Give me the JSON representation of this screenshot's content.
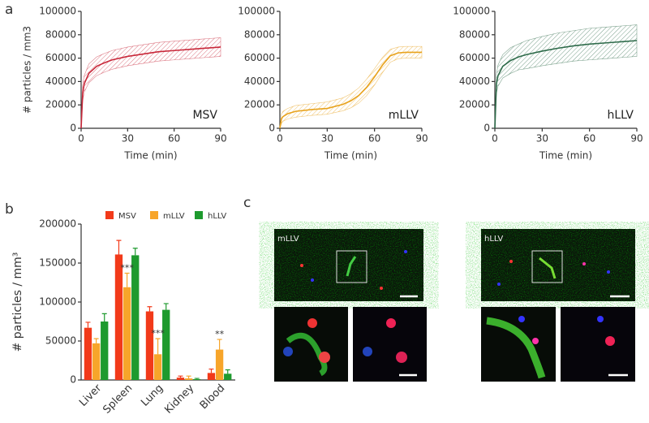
{
  "panel_labels": [
    "a",
    "b",
    "c"
  ],
  "chart_data": [
    {
      "type": "line",
      "x_label": "Time (min)",
      "y_label": "# particles / mm3",
      "x": [
        0,
        1,
        2,
        5,
        10,
        15,
        20,
        30,
        40,
        50,
        60,
        70,
        80,
        90
      ],
      "series": [
        {
          "name": "MSV",
          "color": "#c8283a",
          "values": [
            0,
            30000,
            38000,
            47000,
            53000,
            56000,
            58500,
            61500,
            63500,
            65500,
            66500,
            67500,
            68500,
            69500
          ],
          "upper": [
            0,
            37000,
            45000,
            55000,
            61000,
            64000,
            66500,
            69500,
            71500,
            73500,
            74500,
            75500,
            76500,
            77500
          ],
          "lower": [
            0,
            23000,
            31000,
            39000,
            45000,
            48000,
            50500,
            53500,
            55500,
            57500,
            58500,
            59500,
            60500,
            61500
          ]
        }
      ],
      "xlim": [
        0,
        90
      ],
      "xticks": [
        0,
        30,
        60,
        90
      ],
      "ylim": [
        0,
        100000
      ],
      "yticks": [
        0,
        20000,
        40000,
        60000,
        80000,
        100000
      ]
    },
    {
      "type": "line",
      "x_label": "Time (min)",
      "x": [
        0,
        1,
        2,
        5,
        10,
        20,
        30,
        40,
        45,
        50,
        55,
        60,
        65,
        70,
        75,
        80,
        90
      ],
      "series": [
        {
          "name": "mLLV",
          "color": "#e8a21c",
          "values": [
            0,
            8000,
            10000,
            12500,
            14500,
            16000,
            17000,
            20500,
            23500,
            28000,
            35000,
            44000,
            54000,
            62000,
            64500,
            65000,
            65000
          ],
          "upper": [
            0,
            12000,
            14500,
            17000,
            19500,
            21000,
            22500,
            26000,
            29500,
            34500,
            42000,
            51000,
            60500,
            67500,
            69500,
            70000,
            70000
          ],
          "lower": [
            0,
            4000,
            6000,
            8000,
            9500,
            11000,
            12000,
            15000,
            17500,
            21500,
            28000,
            37000,
            47500,
            56500,
            59500,
            60000,
            60000
          ]
        }
      ],
      "xlim": [
        0,
        90
      ],
      "xticks": [
        0,
        30,
        60,
        90
      ],
      "ylim": [
        0,
        100000
      ],
      "yticks": [
        0,
        20000,
        40000,
        60000,
        80000,
        100000
      ]
    },
    {
      "type": "line",
      "x_label": "Time (min)",
      "x": [
        0,
        1,
        2,
        5,
        10,
        15,
        20,
        30,
        40,
        50,
        60,
        70,
        80,
        90
      ],
      "series": [
        {
          "name": "hLLV",
          "color": "#2e6b4a",
          "values": [
            0,
            38000,
            45000,
            53000,
            58000,
            61000,
            63000,
            66000,
            68500,
            70500,
            72000,
            73000,
            74000,
            75000
          ],
          "upper": [
            0,
            46000,
            54000,
            63000,
            69000,
            72000,
            75000,
            78500,
            81500,
            83500,
            85500,
            86500,
            87500,
            88500
          ],
          "lower": [
            0,
            30000,
            36000,
            43000,
            47000,
            50000,
            51000,
            53500,
            55500,
            57500,
            58500,
            59500,
            60500,
            61500
          ]
        }
      ],
      "xlim": [
        0,
        90
      ],
      "xticks": [
        0,
        30,
        60,
        90
      ],
      "ylim": [
        0,
        100000
      ],
      "yticks": [
        0,
        20000,
        40000,
        60000,
        80000,
        100000
      ]
    },
    {
      "type": "bar",
      "y_label": "# particles / mm³",
      "categories": [
        "Liver",
        "Spleen",
        "Lung",
        "Kidney",
        "Blood"
      ],
      "series": [
        {
          "name": "MSV",
          "color": "#f23a1a",
          "values": [
            67000,
            161000,
            88000,
            3000,
            9000
          ],
          "errors": [
            7000,
            18000,
            6000,
            2000,
            5000
          ]
        },
        {
          "name": "mLLV",
          "color": "#f7a52a",
          "values": [
            47000,
            119000,
            33000,
            2000,
            39000
          ],
          "errors": [
            6000,
            18000,
            20000,
            3000,
            13000
          ]
        },
        {
          "name": "hLLV",
          "color": "#1e9a2e",
          "values": [
            75000,
            160000,
            90000,
            1000,
            8000
          ],
          "errors": [
            10000,
            9000,
            8000,
            1000,
            5000
          ]
        }
      ],
      "annotations": [
        {
          "text": "***",
          "category": "Spleen",
          "series": "mLLV"
        },
        {
          "text": "***",
          "category": "Lung",
          "series": "mLLV"
        },
        {
          "text": "**",
          "category": "Blood",
          "series": "mLLV"
        }
      ],
      "ylim": [
        0,
        200000
      ],
      "yticks": [
        0,
        50000,
        100000,
        150000,
        200000
      ]
    }
  ],
  "images": [
    {
      "label": "mLLV"
    },
    {
      "label": "hLLV"
    }
  ]
}
